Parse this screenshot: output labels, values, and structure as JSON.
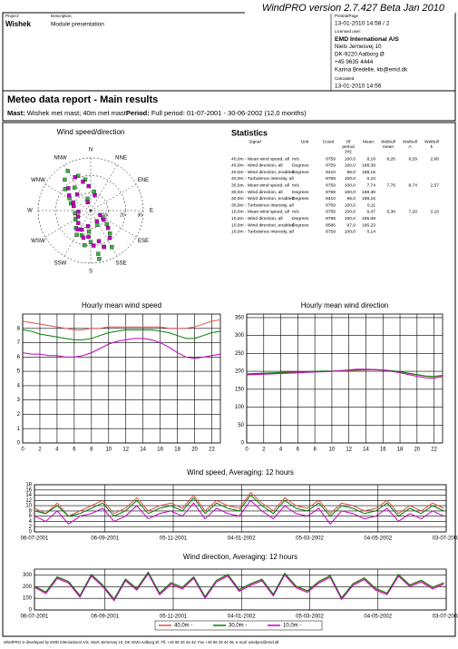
{
  "header": {
    "title": "WindPRO version 2.7.427 Beta  Jan 2010",
    "project_label": "Project:",
    "project": "Wishek",
    "description_label": "Description:",
    "description": "Module presentation",
    "printed_label": "Printed/Page",
    "printed": "13-01-2010 14:58 / 2",
    "licensed_label": "Licensed user:",
    "licensed": [
      "EMD International A/S",
      "Niels Jernesvej 10",
      "DK-9220 Aalborg Ø",
      "+45 9635 4444",
      "Karina Bredelle, kb@emd.dk"
    ],
    "calculated_label": "Calculated:",
    "calculated": "13-01-2010 14:56"
  },
  "report": {
    "title": "Meteo data report - Main results",
    "mast_label": "Mast:",
    "mast": "Wishek met mast; 40m met mast",
    "period_label": "Period:",
    "period": "Full period: 01-07-2001 - 30-06-2002 (12,0 months)"
  },
  "statistics": {
    "title": "Statistics",
    "headers": [
      [
        "Signal"
      ],
      [
        "Unit"
      ],
      [
        "Count"
      ],
      [
        "Of",
        "period",
        "[%]"
      ],
      [
        "Mean"
      ],
      [
        "Weibull",
        "mean"
      ],
      [
        "Weibull",
        "A"
      ],
      [
        "Weibull",
        "k"
      ]
    ],
    "rows": [
      [
        "40,0m - Mean wind speed, all",
        "m/s",
        "8759",
        "100,0",
        "8,18",
        "8,26",
        "9,29",
        "2,68"
      ],
      [
        "40,0m - Wind direction, all",
        "Degrees",
        "8759",
        "100,0",
        "188,39"
      ],
      [
        "40,0m - Wind direction, enabled",
        "Degrees",
        "8410",
        "96,0",
        "188,15"
      ],
      [
        "40,0m - Turbulence intensity, all",
        null,
        "8759",
        "100,0",
        "0,10"
      ],
      [
        "30,0m - Mean wind speed, all",
        "m/s",
        "8759",
        "100,0",
        "7,74",
        "7,76",
        "8,74",
        "2,57"
      ],
      [
        "30,0m - Wind direction, all",
        "Degrees",
        "8759",
        "100,0",
        "188,39"
      ],
      [
        "30,0m - Wind direction, enabled",
        "Degrees",
        "8410",
        "96,0",
        "188,15"
      ],
      [
        "30,0m - Turbulence intensity, all",
        null,
        "8759",
        "100,0",
        "0,11"
      ],
      [
        "10,0m - Mean wind speed, all",
        "m/s",
        "8759",
        "100,0",
        "6,47",
        "6,38",
        "7,20",
        "2,16"
      ],
      [
        "10,0m - Wind direction, all",
        "Degrees",
        "8759",
        "100,0",
        "185,08"
      ],
      [
        "10,0m - Wind direction, enabled",
        "Degrees",
        "8586",
        "97,9",
        "185,23"
      ],
      [
        "10,0m - Turbulence intensity, all",
        null,
        "8759",
        "100,0",
        "0,14"
      ]
    ]
  },
  "chart_data": [
    {
      "type": "rose",
      "title": "Wind speed/direction",
      "directions": [
        "N",
        "NNE",
        "ENE",
        "E",
        "ESE",
        "SSE",
        "S",
        "SSW",
        "WSW",
        "W",
        "WNW",
        "NNW"
      ],
      "rlim": [
        0,
        30
      ],
      "rticks": [
        10,
        20,
        30
      ],
      "series": [
        {
          "color": "#3cb043",
          "x": [
            160,
            170,
            180,
            190,
            200,
            150,
            140,
            330,
            320,
            340,
            310,
            300,
            210,
            220,
            130,
            350,
            10,
            290,
            240,
            260,
            120,
            170,
            185,
            325,
            155,
            345
          ],
          "values": [
            22,
            25,
            18,
            20,
            15,
            24,
            17,
            26,
            23,
            21,
            19,
            14,
            16,
            13,
            12,
            18,
            11,
            12,
            10,
            9,
            8,
            28,
            12,
            16,
            9,
            7
          ]
        },
        {
          "color": "#c000c0",
          "x": [
            165,
            175,
            185,
            195,
            205,
            145,
            135,
            335,
            315,
            345,
            305,
            295,
            215,
            225,
            125,
            355,
            15,
            285,
            245,
            265,
            115,
            160,
            190,
            320,
            150,
            340
          ],
          "values": [
            18,
            20,
            15,
            16,
            12,
            19,
            14,
            21,
            18,
            17,
            15,
            11,
            13,
            10,
            9,
            14,
            9,
            10,
            8,
            7,
            6,
            22,
            9,
            12,
            7,
            5
          ]
        }
      ]
    },
    {
      "type": "line",
      "title": "Hourly mean wind speed",
      "x": [
        0,
        1,
        2,
        3,
        4,
        5,
        6,
        7,
        8,
        9,
        10,
        11,
        12,
        13,
        14,
        15,
        16,
        17,
        18,
        19,
        20,
        21,
        22,
        23
      ],
      "xlim": [
        0,
        23
      ],
      "xticks": [
        0,
        2,
        4,
        6,
        8,
        10,
        12,
        14,
        16,
        18,
        20,
        22
      ],
      "ylim": [
        0,
        9
      ],
      "yticks": [
        0,
        1,
        2,
        3,
        4,
        5,
        6,
        7,
        8
      ],
      "grid": true,
      "series": [
        {
          "color": "#e05050",
          "values": [
            8.5,
            8.4,
            8.3,
            8.2,
            8.1,
            8.0,
            7.9,
            7.9,
            8.0,
            8.0,
            8.1,
            8.1,
            8.1,
            8.1,
            8.1,
            8.1,
            8.1,
            8.0,
            8.0,
            8.0,
            8.1,
            8.3,
            8.5,
            8.6
          ]
        },
        {
          "color": "#008000",
          "values": [
            7.9,
            7.8,
            7.6,
            7.5,
            7.4,
            7.3,
            7.2,
            7.2,
            7.3,
            7.5,
            7.7,
            7.8,
            7.9,
            7.9,
            7.9,
            7.9,
            7.8,
            7.7,
            7.5,
            7.3,
            7.3,
            7.5,
            7.7,
            7.8
          ]
        },
        {
          "color": "#c000c0",
          "values": [
            6.3,
            6.2,
            6.2,
            6.1,
            6.1,
            6.0,
            6.0,
            6.1,
            6.3,
            6.6,
            6.9,
            7.1,
            7.2,
            7.3,
            7.3,
            7.2,
            7.0,
            6.7,
            6.3,
            6.0,
            5.9,
            6.0,
            6.1,
            6.2
          ]
        }
      ]
    },
    {
      "type": "line",
      "title": "Hourly mean wind direction",
      "x": [
        0,
        1,
        2,
        3,
        4,
        5,
        6,
        7,
        8,
        9,
        10,
        11,
        12,
        13,
        14,
        15,
        16,
        17,
        18,
        19,
        20,
        21,
        22,
        23
      ],
      "xlim": [
        0,
        23
      ],
      "xticks": [
        0,
        2,
        4,
        6,
        8,
        10,
        12,
        14,
        16,
        18,
        20,
        22
      ],
      "ylim": [
        0,
        360
      ],
      "yticks": [
        0,
        50,
        100,
        150,
        200,
        250,
        300,
        350
      ],
      "grid": true,
      "series": [
        {
          "color": "#e05050",
          "values": [
            192,
            193,
            194,
            195,
            196,
            197,
            198,
            198,
            199,
            200,
            200,
            201,
            202,
            203,
            204,
            204,
            203,
            201,
            198,
            194,
            190,
            186,
            185,
            188
          ]
        },
        {
          "color": "#008000",
          "values": [
            193,
            194,
            195,
            196,
            197,
            198,
            199,
            199,
            200,
            201,
            201,
            202,
            203,
            204,
            205,
            205,
            204,
            202,
            199,
            195,
            191,
            187,
            186,
            189
          ]
        },
        {
          "color": "#c000c0",
          "values": [
            190,
            191,
            192,
            193,
            194,
            195,
            196,
            197,
            198,
            199,
            200,
            202,
            204,
            206,
            206,
            205,
            203,
            200,
            196,
            191,
            186,
            182,
            181,
            185
          ]
        }
      ]
    },
    {
      "type": "line",
      "title": "Wind speed, Averaging: 12 hours",
      "x": [
        5,
        15,
        25,
        35,
        45,
        55,
        65,
        75,
        85,
        95,
        105,
        115,
        125,
        135,
        145,
        155,
        165,
        175,
        185,
        195,
        205,
        215,
        225,
        235,
        245,
        255,
        265,
        275,
        285,
        295,
        305,
        315,
        325,
        335,
        345,
        355,
        365
      ],
      "xlim": [
        5,
        367
      ],
      "xticks": [
        {
          "value": 5,
          "label": "06-07-2001"
        },
        {
          "value": 67,
          "label": "06-09-2001"
        },
        {
          "value": 127,
          "label": "05-11-2001"
        },
        {
          "value": 187,
          "label": "04-01-2002"
        },
        {
          "value": 247,
          "label": "05-03-2002"
        },
        {
          "value": 307,
          "label": "04-05-2002"
        },
        {
          "value": 367,
          "label": "03-07-2002"
        }
      ],
      "ylim": [
        0,
        18
      ],
      "yticks": [
        0,
        2,
        4,
        6,
        8,
        10,
        12,
        14,
        16,
        18
      ],
      "grid": true,
      "series": [
        {
          "color": "#e05050",
          "values": [
            9,
            7,
            11,
            6,
            8,
            10,
            12,
            7,
            9,
            13,
            8,
            10,
            11,
            9,
            14,
            8,
            12,
            10,
            9,
            15,
            11,
            8,
            13,
            10,
            9,
            12,
            7,
            11,
            10,
            8,
            9,
            12,
            7,
            10,
            8,
            11,
            9
          ]
        },
        {
          "color": "#008000",
          "values": [
            8,
            7,
            10,
            6,
            7,
            9,
            11,
            6,
            8,
            12,
            7,
            9,
            10,
            8,
            13,
            7,
            11,
            9,
            8,
            14,
            10,
            7,
            12,
            9,
            8,
            11,
            6,
            10,
            9,
            7,
            8,
            11,
            6,
            9,
            7,
            10,
            8
          ]
        },
        {
          "color": "#c000c0",
          "values": [
            6,
            4,
            8,
            3,
            6,
            7,
            9,
            4,
            6,
            10,
            5,
            7,
            8,
            6,
            11,
            5,
            9,
            7,
            6,
            12,
            8,
            5,
            10,
            7,
            6,
            9,
            3,
            8,
            7,
            5,
            6,
            9,
            4,
            7,
            5,
            8,
            6
          ]
        }
      ]
    },
    {
      "type": "line",
      "title": "Wind direction, Averaging: 12 hours",
      "x": [
        5,
        15,
        25,
        35,
        45,
        55,
        65,
        75,
        85,
        95,
        105,
        115,
        125,
        135,
        145,
        155,
        165,
        175,
        185,
        195,
        205,
        215,
        225,
        235,
        245,
        255,
        265,
        275,
        285,
        295,
        305,
        315,
        325,
        335,
        345,
        355,
        365
      ],
      "xlim": [
        5,
        367
      ],
      "xticks": [
        {
          "value": 5,
          "label": "06-07-2001"
        },
        {
          "value": 67,
          "label": "06-09-2001"
        },
        {
          "value": 127,
          "label": "05-11-2001"
        },
        {
          "value": 187,
          "label": "04-01-2002"
        },
        {
          "value": 247,
          "label": "05-03-2002"
        },
        {
          "value": 307,
          "label": "04-05-2002"
        },
        {
          "value": 367,
          "label": "03-07-2002"
        }
      ],
      "ylim": [
        0,
        350
      ],
      "yticks": [
        0,
        100,
        200,
        300
      ],
      "grid": true,
      "legend": "bottom",
      "series": [
        {
          "name": "40,0m -",
          "color": "#e05050",
          "values": [
            200,
            150,
            280,
            240,
            120,
            300,
            210,
            90,
            260,
            180,
            320,
            140,
            230,
            190,
            280,
            110,
            250,
            300,
            170,
            220,
            260,
            130,
            310,
            200,
            160,
            240,
            290,
            100,
            220,
            270,
            180,
            140,
            300,
            210,
            250,
            190,
            230
          ]
        },
        {
          "name": "30,0m -",
          "color": "#008000",
          "values": [
            205,
            155,
            285,
            245,
            125,
            305,
            215,
            95,
            265,
            185,
            325,
            145,
            235,
            195,
            285,
            115,
            255,
            305,
            175,
            225,
            265,
            135,
            315,
            205,
            165,
            245,
            295,
            105,
            225,
            275,
            185,
            145,
            305,
            215,
            255,
            195,
            235
          ]
        },
        {
          "name": "10,0m -",
          "color": "#c000c0",
          "values": [
            195,
            140,
            270,
            230,
            110,
            290,
            200,
            80,
            250,
            170,
            310,
            130,
            220,
            180,
            270,
            100,
            240,
            290,
            160,
            210,
            250,
            120,
            300,
            190,
            150,
            230,
            280,
            90,
            210,
            260,
            170,
            130,
            290,
            200,
            240,
            180,
            220
          ]
        }
      ]
    }
  ],
  "footer": "WindPRO is developed by EMD International A/S, Niels Jernesvej 10, DK-9220 Aalborg Ø, Tlf. +45 96 35 44 44, Fax +45 96 35 44 46, e-mail: windpro@emd.dk"
}
